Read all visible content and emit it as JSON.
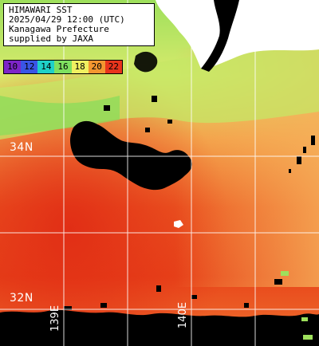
{
  "header": {
    "lines": [
      "HIMAWARI SST",
      "2025/04/29 12:00 (UTC)",
      "Kanagawa Prefecture",
      "supplied by JAXA"
    ]
  },
  "legend": {
    "entries": [
      {
        "value": "10",
        "color": "#7d25c8"
      },
      {
        "value": "12",
        "color": "#3a55e6"
      },
      {
        "value": "14",
        "color": "#1fd0c8"
      },
      {
        "value": "16",
        "color": "#7fe060"
      },
      {
        "value": "18",
        "color": "#f0f060"
      },
      {
        "value": "20",
        "color": "#f39630"
      },
      {
        "value": "22",
        "color": "#e8341c"
      }
    ]
  },
  "grid": {
    "latitudes": [
      "34N",
      "32N"
    ],
    "longitudes": [
      "139E",
      "140E"
    ]
  },
  "colors": {
    "land": "#000000",
    "no_data": "#ffffff",
    "grid": "#ffffff",
    "warm_sst": "#e63c16",
    "mid_sst": "#f39a3e",
    "cool_sst": "#b7e361"
  }
}
